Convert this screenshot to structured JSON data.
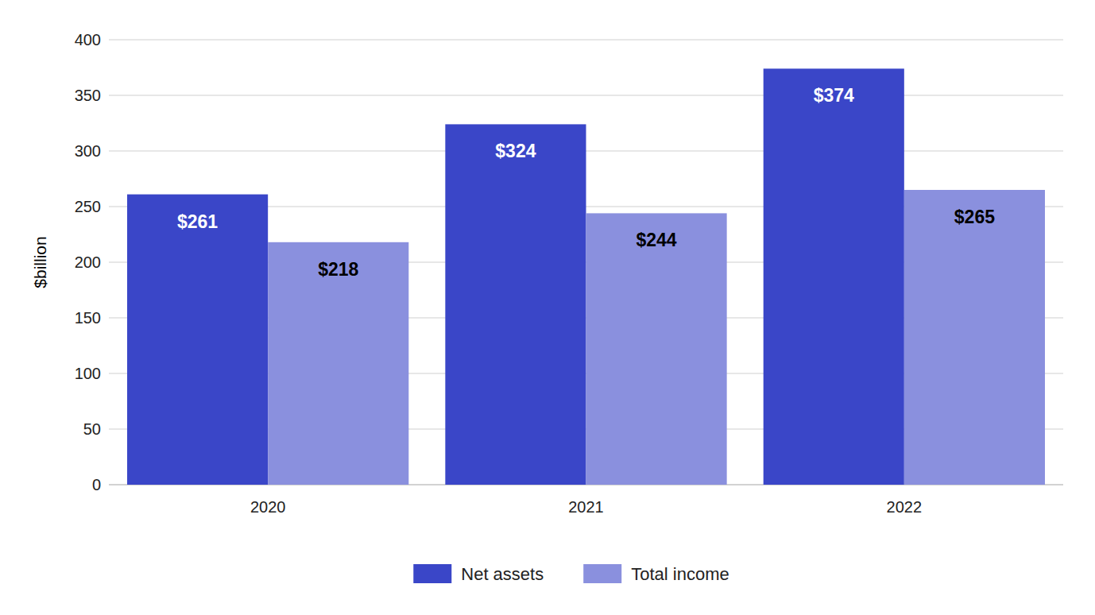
{
  "chart_data": {
    "type": "bar",
    "ylabel": "$billion",
    "categories": [
      "2020",
      "2021",
      "2022"
    ],
    "series": [
      {
        "name": "Net assets",
        "color": "#3a46c8",
        "values": [
          261,
          324,
          374
        ],
        "value_labels": [
          "$261",
          "$324",
          "$374"
        ]
      },
      {
        "name": "Total income",
        "color": "#8a90de",
        "values": [
          218,
          244,
          265
        ],
        "value_labels": [
          "$218",
          "$244",
          "$265"
        ]
      }
    ],
    "ylim": [
      0,
      400
    ],
    "yticks": [
      0,
      50,
      100,
      150,
      200,
      250,
      300,
      350,
      400
    ],
    "grid": true,
    "data_labels": true,
    "legend": "bottom"
  }
}
